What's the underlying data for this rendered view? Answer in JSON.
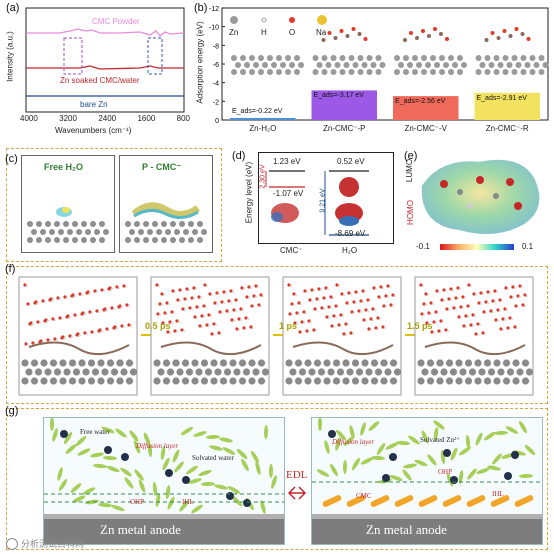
{
  "panels": {
    "a": {
      "label": "(a)",
      "ylabel": "Intensity (a.u.)",
      "xlabel": "Wavenumbers (cm⁻¹)",
      "xticks": [
        "4000",
        "3200",
        "2400",
        "1600",
        "800"
      ],
      "series": [
        {
          "name": "CMC Powder",
          "color": "#e88be0"
        },
        {
          "name": "Zn soaked CMC/water",
          "color": "#c0282d"
        },
        {
          "name": "bare Zn",
          "color": "#1f4e8c"
        }
      ]
    },
    "b": {
      "label": "(b)",
      "ylabel": "Adsorption energy (eV)",
      "yticks": [
        "-12",
        "-10",
        "-8",
        "-6",
        "-4",
        "-2",
        "0"
      ],
      "legend": [
        "Zn",
        "H",
        "O",
        "Na"
      ],
      "bars": [
        {
          "category": "Zn-H₂O",
          "label": "E_ads=-0.22 eV",
          "value": -0.22,
          "color": "#4f8fd8"
        },
        {
          "category": "Zn-CMC⁻-P",
          "label": "E_ads=-3.17 eV",
          "value": -3.17,
          "color": "#9b59e6"
        },
        {
          "category": "Zn-CMC⁻-V",
          "label": "E_ads=-2.56 eV",
          "value": -2.56,
          "color": "#ef6a5a"
        },
        {
          "category": "Zn-CMC⁻-R",
          "label": "E_ads=-2.91 eV",
          "value": -2.91,
          "color": "#f2e25f"
        }
      ]
    },
    "c": {
      "label": "(c)",
      "left_title": "Free H₂O",
      "right_title": "P - CMC⁻"
    },
    "d": {
      "label": "(d)",
      "ylabel": "Energy level (eV)",
      "cmc_lumo": "1.23 eV",
      "cmc_homo": "-1.07 eV",
      "cmc_gap": "2.30 eV",
      "h2o_lumo": "0.52 eV",
      "h2o_homo": "-8.69 eV",
      "h2o_gap": "9.21 eV",
      "xlabel_cmc": "CMC⁻",
      "xlabel_h2o": "H₂O"
    },
    "e": {
      "label": "(e)",
      "lumo": "LUMO",
      "homo": "HOMO",
      "scale_min": "-0.1",
      "scale_max": "0.1"
    },
    "f": {
      "label": "(f)",
      "steps": [
        "0.5 ps",
        "1 ps",
        "1.5 ps"
      ]
    },
    "g": {
      "label": "(g)",
      "left": {
        "free_water": "Free water",
        "diffusion": "Diffusion layer",
        "solvated": "Solvated water",
        "ohp": "OHP",
        "ihl": "IHL",
        "anode": "Zn metal anode"
      },
      "edl": "EDL",
      "right": {
        "diffusion": "Diffusion layer",
        "solvated": "Solvated Zn²⁺",
        "ohp": "OHP",
        "cmc": "CMC",
        "ihl": "IHL",
        "anode": "Zn metal anode"
      }
    }
  },
  "watermark": "分析测试百科网"
}
